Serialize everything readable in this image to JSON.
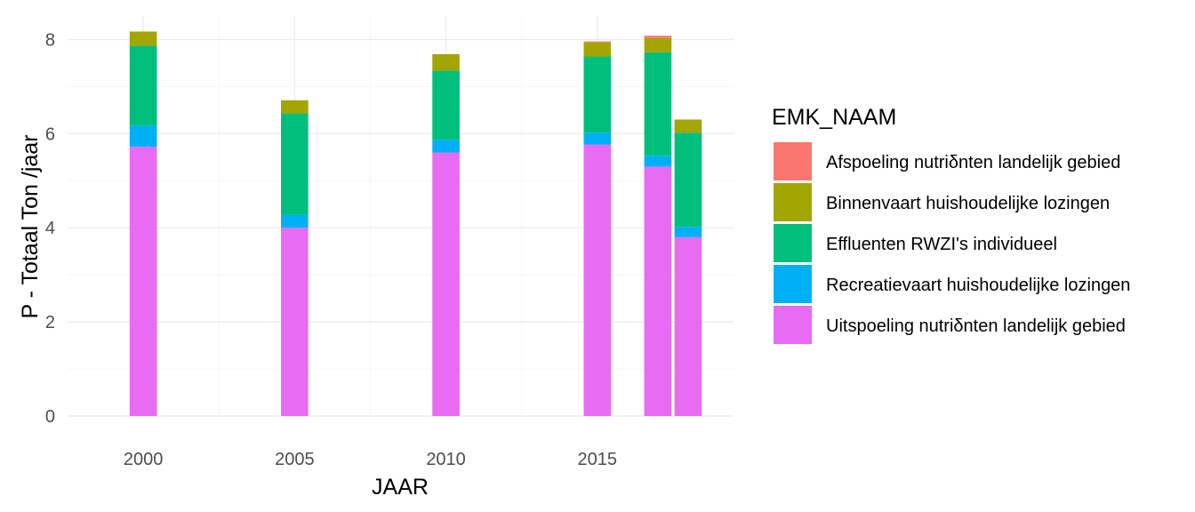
{
  "chart_data": {
    "type": "bar",
    "stacked": true,
    "xlabel": "JAAR",
    "ylabel": "P - Totaal Ton /jaar",
    "ylim": [
      0,
      8.5
    ],
    "xlim": [
      1997.5,
      2019.5
    ],
    "x_ticks": [
      2000,
      2005,
      2010,
      2015
    ],
    "y_ticks": [
      0,
      2,
      4,
      6,
      8
    ],
    "grid": true,
    "legend": {
      "title": "EMK_NAAM",
      "position": "right"
    },
    "x": [
      2000,
      2005,
      2010,
      2015,
      2017,
      2018
    ],
    "series": [
      {
        "name": "Uitspoeling nutriδnten landelijk gebied",
        "color": "#E76BF3",
        "values": [
          5.72,
          4.0,
          5.6,
          5.77,
          5.3,
          3.8
        ]
      },
      {
        "name": "Recreatievaart huishoudelijke lozingen",
        "color": "#00B0F6",
        "values": [
          0.45,
          0.28,
          0.27,
          0.25,
          0.23,
          0.22
        ]
      },
      {
        "name": "Effluenten RWZI's  individueel",
        "color": "#00BF7D",
        "values": [
          1.7,
          2.15,
          1.47,
          1.62,
          2.2,
          2.0
        ]
      },
      {
        "name": "Binnenvaart huishoudelijke lozingen",
        "color": "#A3A500",
        "values": [
          0.3,
          0.28,
          0.35,
          0.3,
          0.3,
          0.28
        ]
      },
      {
        "name": "Afspoeling nutriδnten landelijk gebied",
        "color": "#F8766D",
        "values": [
          0,
          0,
          0,
          0.02,
          0.05,
          0
        ]
      }
    ],
    "legend_order": [
      "Afspoeling nutriδnten landelijk gebied",
      "Binnenvaart huishoudelijke lozingen",
      "Effluenten RWZI's  individueel",
      "Recreatievaart huishoudelijke lozingen",
      "Uitspoeling nutriδnten landelijk gebied"
    ]
  }
}
